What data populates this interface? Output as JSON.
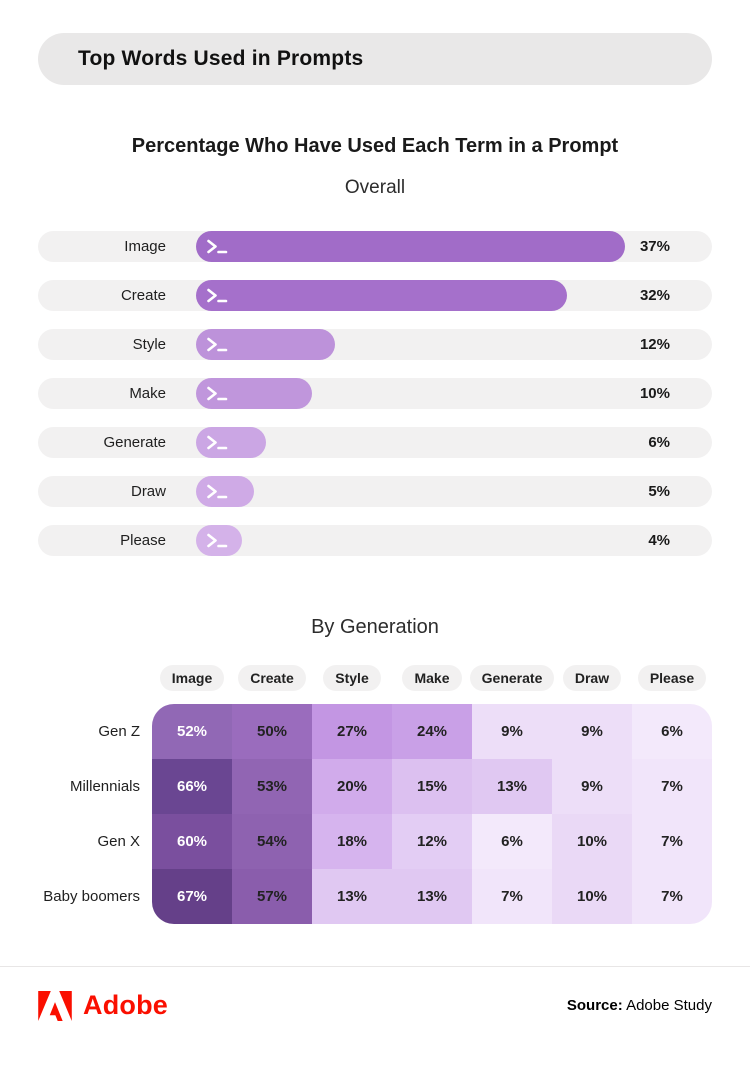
{
  "header": {
    "title": "Top Words Used in Prompts"
  },
  "colors": {
    "header_pill_bg": "#e9e8e8",
    "bar_track": "#f2f1f1",
    "adobe_red": "#fa0f00",
    "page_bg": "#ffffff"
  },
  "icons": {
    "bar_icon": "terminal-prompt-icon",
    "brand_icon": "adobe-logo-icon"
  },
  "chart_data": [
    {
      "type": "bar",
      "orientation": "horizontal",
      "title": "Percentage Who Have Used Each Term in a Prompt",
      "subtitle": "Overall",
      "unit": "%",
      "categories": [
        "Image",
        "Create",
        "Style",
        "Make",
        "Generate",
        "Draw",
        "Please"
      ],
      "values": [
        37,
        32,
        12,
        10,
        6,
        5,
        4
      ],
      "value_labels": [
        "37%",
        "32%",
        "12%",
        "10%",
        "6%",
        "5%",
        "4%"
      ],
      "bar_colors": [
        "#a16cc8",
        "#a570cb",
        "#bd92da",
        "#c096dc",
        "#cba6e4",
        "#cfaae6",
        "#d4b2e9"
      ],
      "track_color": "#f2f1f1",
      "axis_shown": false
    },
    {
      "type": "heatmap",
      "title": "By Generation",
      "unit": "%",
      "columns": [
        "Image",
        "Create",
        "Style",
        "Make",
        "Generate",
        "Draw",
        "Please"
      ],
      "row_labels": [
        "Gen Z",
        "Millennials",
        "Gen X",
        "Baby boomers"
      ],
      "values": [
        [
          52,
          50,
          27,
          24,
          9,
          9,
          6
        ],
        [
          66,
          53,
          20,
          15,
          13,
          9,
          7
        ],
        [
          60,
          54,
          18,
          12,
          6,
          10,
          7
        ],
        [
          67,
          57,
          13,
          13,
          7,
          10,
          7
        ]
      ],
      "cell_labels": [
        [
          "52%",
          "50%",
          "27%",
          "24%",
          "9%",
          "9%",
          "6%"
        ],
        [
          "66%",
          "53%",
          "20%",
          "15%",
          "13%",
          "9%",
          "7%"
        ],
        [
          "60%",
          "54%",
          "18%",
          "12%",
          "6%",
          "10%",
          "7%"
        ],
        [
          "67%",
          "57%",
          "13%",
          "13%",
          "7%",
          "10%",
          "7%"
        ]
      ],
      "cell_colors": [
        [
          "#9168b5",
          "#9a6cbd",
          "#c396e3",
          "#c9a0e7",
          "#eddef8",
          "#eddef8",
          "#f3e9fb"
        ],
        [
          "#6a4692",
          "#9165b3",
          "#d1abeb",
          "#dcc0f0",
          "#e0c8f2",
          "#eddef8",
          "#f1e5fa"
        ],
        [
          "#7a4f9e",
          "#8e62b0",
          "#d6b4ee",
          "#e3cdf4",
          "#f3e9fb",
          "#ead9f6",
          "#f1e5fa"
        ],
        [
          "#654089",
          "#8a5dac",
          "#e0c8f2",
          "#e0c8f2",
          "#f1e5fa",
          "#ead9f6",
          "#f1e5fa"
        ]
      ],
      "white_text_column": 0,
      "dark_text_color": "#222222",
      "white_text_color": "#ffffff"
    }
  ],
  "footer": {
    "brand": "Adobe",
    "source_label": "Source:",
    "source_text": " Adobe Study"
  }
}
